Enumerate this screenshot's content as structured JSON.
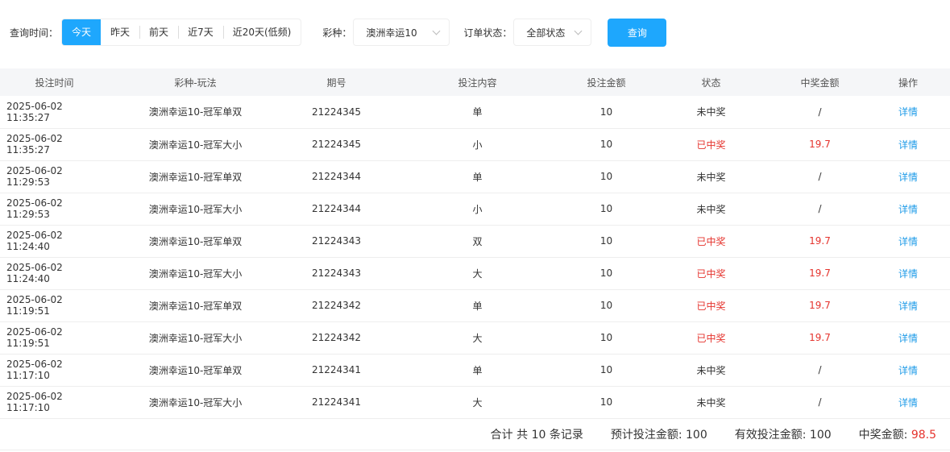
{
  "filters": {
    "time_label": "查询时间：",
    "time_options": [
      "今天",
      "昨天",
      "前天",
      "近7天",
      "近20天(低频)"
    ],
    "active_time": 0,
    "lottery_label": "彩种：",
    "lottery_value": "澳洲幸运10",
    "status_label": "订单状态：",
    "status_value": "全部状态",
    "query_button": "查询"
  },
  "table": {
    "headers": [
      "投注时间",
      "彩种-玩法",
      "期号",
      "投注内容",
      "投注金额",
      "状态",
      "中奖金额",
      "操作"
    ],
    "rows": [
      [
        "2025-06-02 11:35:27",
        "澳洲幸运10-冠军单双",
        "21224345",
        "单",
        "10",
        "未中奖",
        "/",
        "详情"
      ],
      [
        "2025-06-02 11:35:27",
        "澳洲幸运10-冠军大小",
        "21224345",
        "小",
        "10",
        "已中奖",
        "19.7",
        "详情"
      ],
      [
        "2025-06-02 11:29:53",
        "澳洲幸运10-冠军单双",
        "21224344",
        "单",
        "10",
        "未中奖",
        "/",
        "详情"
      ],
      [
        "2025-06-02 11:29:53",
        "澳洲幸运10-冠军大小",
        "21224344",
        "小",
        "10",
        "未中奖",
        "/",
        "详情"
      ],
      [
        "2025-06-02 11:24:40",
        "澳洲幸运10-冠军单双",
        "21224343",
        "双",
        "10",
        "已中奖",
        "19.7",
        "详情"
      ],
      [
        "2025-06-02 11:24:40",
        "澳洲幸运10-冠军大小",
        "21224343",
        "大",
        "10",
        "已中奖",
        "19.7",
        "详情"
      ],
      [
        "2025-06-02 11:19:51",
        "澳洲幸运10-冠军单双",
        "21224342",
        "单",
        "10",
        "已中奖",
        "19.7",
        "详情"
      ],
      [
        "2025-06-02 11:19:51",
        "澳洲幸运10-冠军大小",
        "21224342",
        "大",
        "10",
        "已中奖",
        "19.7",
        "详情"
      ],
      [
        "2025-06-02 11:17:10",
        "澳洲幸运10-冠军单双",
        "21224341",
        "单",
        "10",
        "未中奖",
        "/",
        "详情"
      ],
      [
        "2025-06-02 11:17:10",
        "澳洲幸运10-冠军大小",
        "21224341",
        "大",
        "10",
        "未中奖",
        "/",
        "详情"
      ]
    ]
  },
  "footer": {
    "total": "合计 共 10 条记录",
    "expected_label": "预计投注金额: ",
    "expected": "100",
    "valid_label": "有效投注金额: ",
    "valid": "100",
    "win_label": "中奖金额: ",
    "win": "98.5"
  },
  "colors": {
    "accent": "#1ea7fd",
    "win": "#e5332d",
    "link": "#1e9be8"
  }
}
